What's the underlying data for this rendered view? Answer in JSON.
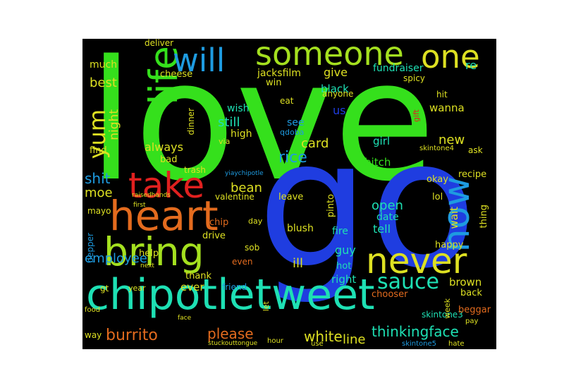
{
  "image_type": "word cloud",
  "background": "#000000",
  "colors": {
    "green": "#35e01c",
    "blue": "#1f3de0",
    "teal": "#1ee0b4",
    "yellow": "#dde022",
    "orange": "#e36b1e",
    "red": "#e0201f",
    "sky": "#1e9be0",
    "lime": "#a4e01f",
    "aqua": "#27d6c9"
  },
  "words": [
    "love",
    "go",
    "chipotletweet",
    "heart",
    "bring",
    "someone",
    "take",
    "life",
    "never",
    "now",
    "one",
    "will",
    "sauce",
    "yum",
    "rice",
    "thinkingface",
    "burrito",
    "please",
    "white",
    "shit",
    "moe",
    "line",
    "employee",
    "best",
    "much",
    "give",
    "new",
    "bean",
    "open",
    "card",
    "always",
    "night",
    "still",
    "see",
    "high",
    "wish",
    "black",
    "us",
    "jacksfilm",
    "fundraiser",
    "re",
    "cheese",
    "qdoba",
    "girl",
    "bitch",
    "wanna",
    "hit",
    "ask",
    "recipe",
    "okay",
    "lol",
    "date",
    "tell",
    "blush",
    "chip",
    "fire",
    "ill",
    "guy",
    "hot",
    "right",
    "ever",
    "friend",
    "thank",
    "brown",
    "chooser",
    "skintone3",
    "back",
    "beggar",
    "week",
    "wait",
    "thing",
    "happy",
    "sob",
    "even",
    "drive",
    "help",
    "pepper",
    "gt",
    "year",
    "way",
    "mayo",
    "find",
    "bad",
    "trash",
    "dinner",
    "deliver",
    "valentine",
    "pinto",
    "leave",
    "anyone",
    "eat",
    "spicy",
    "gift",
    "skintone4",
    "yiaychipotle",
    "via",
    "day",
    "let",
    "food",
    "face",
    "stuckouttongue",
    "hour",
    "use",
    "skintone5",
    "hate",
    "pay",
    "raisedhands",
    "first",
    "next",
    "win",
    "cheese"
  ]
}
